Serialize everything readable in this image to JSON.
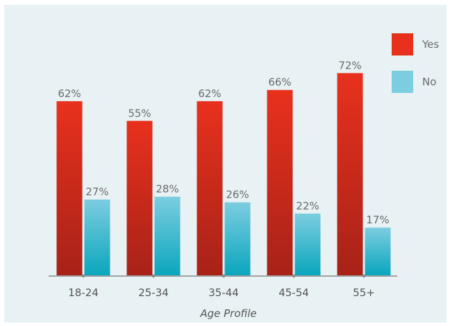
{
  "chart_data": {
    "type": "bar",
    "categories": [
      "18-24",
      "25-34",
      "35-44",
      "45-54",
      "55+"
    ],
    "series": [
      {
        "name": "Yes",
        "values": [
          62,
          55,
          62,
          66,
          72
        ],
        "labels": [
          "62%",
          "55%",
          "62%",
          "66%",
          "72%"
        ]
      },
      {
        "name": "No",
        "values": [
          27,
          28,
          26,
          22,
          17
        ],
        "labels": [
          "27%",
          "28%",
          "26%",
          "22%",
          "17%"
        ]
      }
    ],
    "title": "",
    "xlabel": "Age Profile",
    "ylabel": "",
    "ylim": [
      0,
      80
    ],
    "grid": false,
    "legend": "top-right",
    "colors": {
      "yes_top": "#e8311d",
      "yes_bottom": "#a82218",
      "no_top": "#7ccde0",
      "no_bottom": "#0aa6bd",
      "axis": "#888888",
      "background": "#e8f2f4"
    }
  }
}
